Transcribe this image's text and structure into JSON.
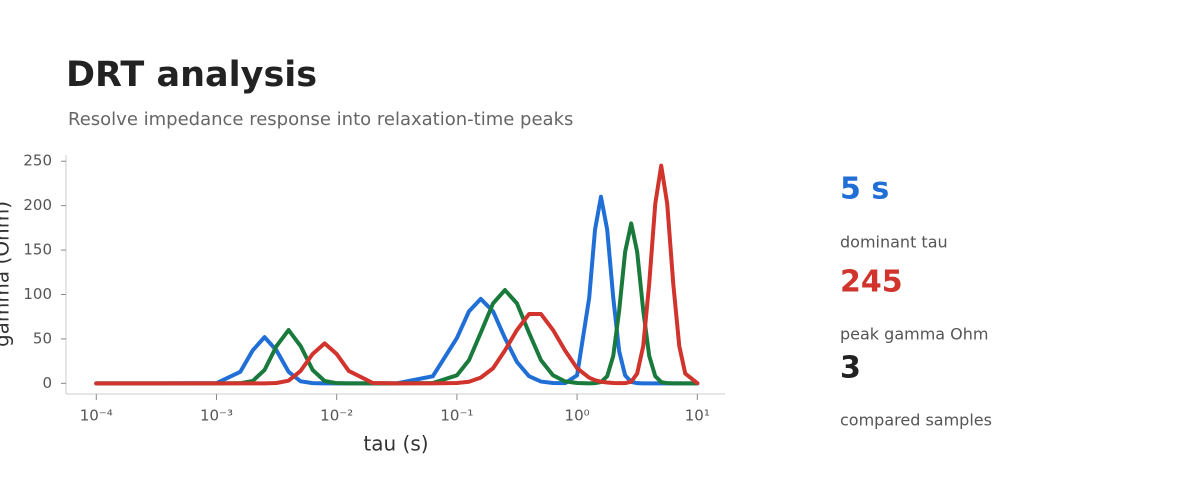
{
  "header": {
    "title": "DRT analysis",
    "subtitle": "Resolve impedance response into relaxation-time peaks"
  },
  "chart_data": {
    "type": "line",
    "x_label": "tau (s)",
    "y_label": "gamma (Ohm)",
    "xscale": "log",
    "x": [
      0.0001,
      0.000316,
      0.001,
      0.00158,
      0.002,
      0.00251,
      0.00316,
      0.00398,
      0.00501,
      0.00631,
      0.00794,
      0.01,
      0.0126,
      0.02,
      0.0316,
      0.0631,
      0.1,
      0.126,
      0.158,
      0.2,
      0.251,
      0.316,
      0.398,
      0.501,
      0.631,
      0.794,
      1,
      1.26,
      1.41,
      1.58,
      1.78,
      2,
      2.24,
      2.51,
      2.82,
      3.16,
      3.55,
      3.98,
      4.47,
      5.01,
      5.62,
      6.31,
      7.08,
      7.94,
      10
    ],
    "series": [
      {
        "color": "#1f6fd6",
        "values": [
          0,
          0,
          0.2,
          13,
          37,
          52,
          37,
          13,
          2.3,
          0.2,
          0,
          0,
          0,
          0,
          0,
          8,
          51,
          81,
          95,
          81,
          51,
          24,
          8,
          2,
          0.4,
          0.2,
          9,
          96,
          173,
          210,
          173,
          96,
          36,
          9,
          1.6,
          0.2,
          0,
          0,
          0,
          0,
          0,
          0,
          0,
          0,
          0
        ]
      },
      {
        "color": "#1a7a3c",
        "values": [
          0,
          0,
          0,
          0.2,
          2.6,
          15,
          42,
          60,
          42,
          15,
          2.6,
          0.2,
          0,
          0,
          0,
          0.4,
          9,
          26,
          57,
          90,
          105,
          90,
          57,
          26,
          9,
          2.2,
          0.4,
          0,
          0.2,
          1.4,
          8,
          31,
          82,
          148,
          180,
          148,
          82,
          31,
          8,
          1.4,
          0.2,
          0,
          0,
          0,
          0
        ]
      },
      {
        "color": "#d0342c",
        "values": [
          0,
          0,
          0,
          0,
          0,
          0,
          0.4,
          3,
          14,
          33,
          45,
          33,
          14,
          0.4,
          0,
          0,
          0.4,
          1.8,
          6.4,
          17,
          37,
          60,
          78,
          78,
          60,
          37,
          17,
          6.4,
          3.5,
          1.8,
          0.9,
          0.4,
          0.2,
          0.2,
          1.9,
          11,
          42,
          112,
          202,
          245,
          202,
          112,
          42,
          11,
          0.2
        ]
      }
    ],
    "xlim": [
      5.6e-05,
      17
    ],
    "xticks": [
      {
        "value": 0.0001,
        "label": "10⁻⁴"
      },
      {
        "value": 0.001,
        "label": "10⁻³"
      },
      {
        "value": 0.01,
        "label": "10⁻²"
      },
      {
        "value": 0.1,
        "label": "10⁻¹"
      },
      {
        "value": 1,
        "label": "10⁰"
      },
      {
        "value": 10,
        "label": "10¹"
      }
    ],
    "ylim": [
      -12,
      257
    ],
    "yticks": [
      0,
      50,
      100,
      150,
      200,
      250
    ],
    "grid": false
  },
  "kpis": [
    {
      "value": "5 s",
      "label": "dominant tau"
    },
    {
      "value": "245",
      "label": "peak gamma Ohm"
    },
    {
      "value": "3",
      "label": "compared samples"
    }
  ]
}
